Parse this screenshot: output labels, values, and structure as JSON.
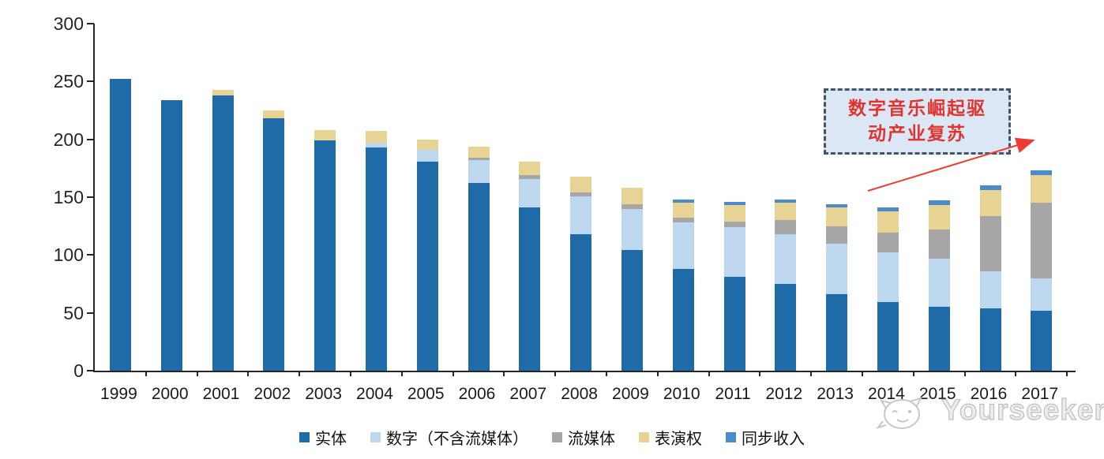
{
  "chart_data": {
    "type": "bar",
    "stacked": true,
    "title": "",
    "xlabel": "",
    "ylabel": "",
    "categories": [
      "1999",
      "2000",
      "2001",
      "2002",
      "2003",
      "2004",
      "2005",
      "2006",
      "2007",
      "2008",
      "2009",
      "2010",
      "2011",
      "2012",
      "2013",
      "2014",
      "2015",
      "2016",
      "2017"
    ],
    "series": [
      {
        "name": "实体",
        "color": "#1F6BA8",
        "values": [
          252,
          234,
          238,
          218,
          199,
          193,
          181,
          162,
          141,
          118,
          104,
          88,
          81,
          75,
          66,
          59,
          55,
          54,
          52
        ]
      },
      {
        "name": "数字（不含流媒体）",
        "color": "#BDD7EE",
        "values": [
          0,
          0,
          0,
          0,
          0,
          4,
          10,
          20,
          25,
          33,
          36,
          40,
          43,
          43,
          44,
          43,
          42,
          32,
          28
        ]
      },
      {
        "name": "流媒体",
        "color": "#A6A6A6",
        "values": [
          0,
          0,
          0,
          0,
          0,
          0,
          0,
          2,
          3,
          3,
          4,
          4,
          5,
          12,
          15,
          17,
          25,
          48,
          65
        ]
      },
      {
        "name": "表演权",
        "color": "#E7D495",
        "values": [
          0,
          0,
          5,
          7,
          9,
          10,
          9,
          10,
          12,
          14,
          14,
          13,
          14,
          15,
          16,
          19,
          21,
          22,
          24
        ]
      },
      {
        "name": "同步收入",
        "color": "#4A8BC8",
        "values": [
          0,
          0,
          0,
          0,
          0,
          0,
          0,
          0,
          0,
          0,
          0,
          3,
          3,
          3,
          3,
          3,
          4,
          4,
          4
        ]
      }
    ],
    "ylim": [
      0,
      300
    ],
    "ytick_step": 50,
    "grid": false,
    "legend_position": "bottom"
  },
  "annotation": {
    "line1": "数字音乐崛起驱",
    "line2": "动产业复苏",
    "text_color": "#E0342F",
    "border_color": "#44546A",
    "fill_color": "#DCE7F5",
    "arrow_color": "#EE3B33"
  },
  "axis": {
    "line_color": "#262626",
    "label_color": "#1A1A1A"
  },
  "watermark": {
    "text": "Yourseeker",
    "logo": "cat-face-logo",
    "color": "#BFBFBF"
  }
}
